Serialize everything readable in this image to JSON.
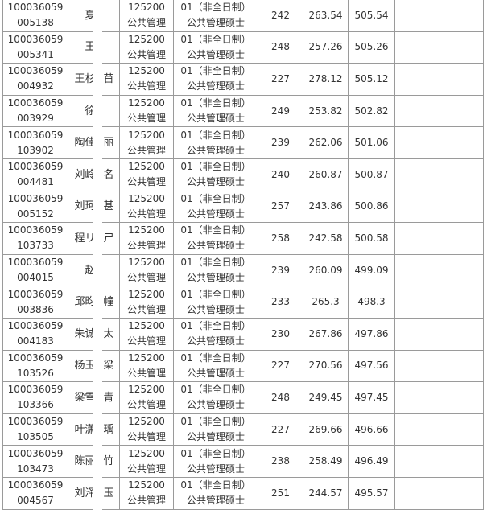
{
  "rows": [
    {
      "id1": "100036059",
      "id2": "005138",
      "name_a": "夏",
      "name_b": "",
      "code": "125200",
      "code_name": "公共管理",
      "dir1": "01（非全日制）",
      "dir2": "公共管理硕士",
      "s1": "242",
      "s2": "263.54",
      "total": "505.54"
    },
    {
      "id1": "100036059",
      "id2": "005341",
      "name_a": "王",
      "name_b": "",
      "code": "125200",
      "code_name": "公共管理",
      "dir1": "01（非全日制）",
      "dir2": "公共管理硕士",
      "s1": "248",
      "s2": "257.26",
      "total": "505.26"
    },
    {
      "id1": "100036059",
      "id2": "004932",
      "name_a": "王杉",
      "name_b": "苜",
      "code": "125200",
      "code_name": "公共管理",
      "dir1": "01（非全日制）",
      "dir2": "公共管理硕士",
      "s1": "227",
      "s2": "278.12",
      "total": "505.12"
    },
    {
      "id1": "100036059",
      "id2": "003929",
      "name_a": "徐",
      "name_b": "",
      "code": "125200",
      "code_name": "公共管理",
      "dir1": "01（非全日制）",
      "dir2": "公共管理硕士",
      "s1": "249",
      "s2": "253.82",
      "total": "502.82"
    },
    {
      "id1": "100036059",
      "id2": "103902",
      "name_a": "陶佳",
      "name_b": "丽",
      "code": "125200",
      "code_name": "公共管理",
      "dir1": "01（非全日制）",
      "dir2": "公共管理硕士",
      "s1": "239",
      "s2": "262.06",
      "total": "501.06"
    },
    {
      "id1": "100036059",
      "id2": "004481",
      "name_a": "刘岭",
      "name_b": "名",
      "code": "125200",
      "code_name": "公共管理",
      "dir1": "01（非全日制）",
      "dir2": "公共管理硕士",
      "s1": "240",
      "s2": "260.87",
      "total": "500.87"
    },
    {
      "id1": "100036059",
      "id2": "005152",
      "name_a": "刘珂",
      "name_b": "甚",
      "code": "125200",
      "code_name": "公共管理",
      "dir1": "01（非全日制）",
      "dir2": "公共管理硕士",
      "s1": "257",
      "s2": "243.86",
      "total": "500.86"
    },
    {
      "id1": "100036059",
      "id2": "103733",
      "name_a": "程リ",
      "name_b": "ㄕ",
      "code": "125200",
      "code_name": "公共管理",
      "dir1": "01（非全日制）",
      "dir2": "公共管理硕士",
      "s1": "258",
      "s2": "242.58",
      "total": "500.58"
    },
    {
      "id1": "100036059",
      "id2": "004015",
      "name_a": "赵",
      "name_b": "",
      "code": "125200",
      "code_name": "公共管理",
      "dir1": "01（非全日制）",
      "dir2": "公共管理硕士",
      "s1": "239",
      "s2": "260.09",
      "total": "499.09"
    },
    {
      "id1": "100036059",
      "id2": "003836",
      "name_a": "邱昀",
      "name_b": "幢",
      "code": "125200",
      "code_name": "公共管理",
      "dir1": "01（非全日制）",
      "dir2": "公共管理硕士",
      "s1": "233",
      "s2": "265.3",
      "total": "498.3"
    },
    {
      "id1": "100036059",
      "id2": "004183",
      "name_a": "朱诚",
      "name_b": "太",
      "code": "125200",
      "code_name": "公共管理",
      "dir1": "01（非全日制）",
      "dir2": "公共管理硕士",
      "s1": "230",
      "s2": "267.86",
      "total": "497.86"
    },
    {
      "id1": "100036059",
      "id2": "103526",
      "name_a": "杨玉",
      "name_b": "梁",
      "code": "125200",
      "code_name": "公共管理",
      "dir1": "01（非全日制）",
      "dir2": "公共管理硕士",
      "s1": "227",
      "s2": "270.56",
      "total": "497.56"
    },
    {
      "id1": "100036059",
      "id2": "103366",
      "name_a": "梁雪",
      "name_b": "青",
      "code": "125200",
      "code_name": "公共管理",
      "dir1": "01（非全日制）",
      "dir2": "公共管理硕士",
      "s1": "248",
      "s2": "249.45",
      "total": "497.45"
    },
    {
      "id1": "100036059",
      "id2": "103505",
      "name_a": "叶潇",
      "name_b": "瑀",
      "code": "125200",
      "code_name": "公共管理",
      "dir1": "01（非全日制）",
      "dir2": "公共管理硕士",
      "s1": "227",
      "s2": "269.66",
      "total": "496.66"
    },
    {
      "id1": "100036059",
      "id2": "103473",
      "name_a": "陈丽",
      "name_b": "竹",
      "code": "125200",
      "code_name": "公共管理",
      "dir1": "01（非全日制）",
      "dir2": "公共管理硕士",
      "s1": "238",
      "s2": "258.49",
      "total": "496.49"
    },
    {
      "id1": "100036059",
      "id2": "004567",
      "name_a": "刘泽",
      "name_b": "玉",
      "code": "125200",
      "code_name": "公共管理",
      "dir1": "01（非全日制）",
      "dir2": "公共管理硕士",
      "s1": "251",
      "s2": "244.57",
      "total": "495.57"
    }
  ]
}
